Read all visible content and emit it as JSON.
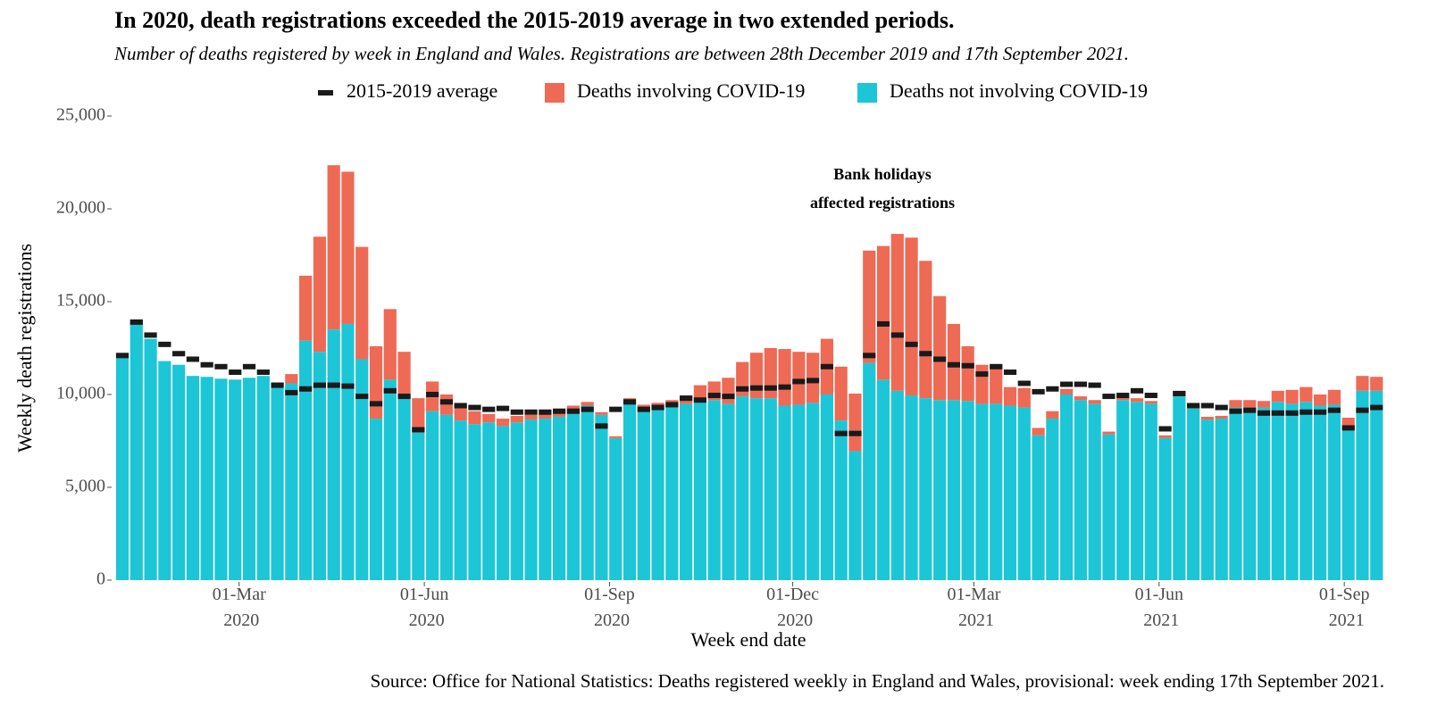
{
  "chart_data": {
    "type": "bar",
    "title": "In 2020, death registrations exceeded the 2015-2019 average in two extended periods.",
    "subtitle": "Number of deaths registered by week in England and Wales. Registrations are between 28th December 2019 and 17th September 2021.",
    "x_label": "Week end date",
    "y_label": "Weekly death registrations",
    "source": "Source: Office for National Statistics: Deaths registered weekly in England and Wales, provisional: week ending 17th September 2021.",
    "annotation": [
      "Bank holidays",
      "affected registrations"
    ],
    "stacked": true,
    "grid": false,
    "legend": "top",
    "x": [
      "2020-01-03",
      "2020-01-10",
      "2020-01-17",
      "2020-01-24",
      "2020-01-31",
      "2020-02-07",
      "2020-02-14",
      "2020-02-21",
      "2020-02-28",
      "2020-03-06",
      "2020-03-13",
      "2020-03-20",
      "2020-03-27",
      "2020-04-03",
      "2020-04-10",
      "2020-04-17",
      "2020-04-24",
      "2020-05-01",
      "2020-05-08",
      "2020-05-15",
      "2020-05-22",
      "2020-05-29",
      "2020-06-05",
      "2020-06-12",
      "2020-06-19",
      "2020-06-26",
      "2020-07-03",
      "2020-07-10",
      "2020-07-17",
      "2020-07-24",
      "2020-07-31",
      "2020-08-07",
      "2020-08-14",
      "2020-08-21",
      "2020-08-28",
      "2020-09-04",
      "2020-09-11",
      "2020-09-18",
      "2020-09-25",
      "2020-10-02",
      "2020-10-09",
      "2020-10-16",
      "2020-10-23",
      "2020-10-30",
      "2020-11-06",
      "2020-11-13",
      "2020-11-20",
      "2020-11-27",
      "2020-12-04",
      "2020-12-11",
      "2020-12-18",
      "2020-12-25",
      "2021-01-01",
      "2021-01-08",
      "2021-01-15",
      "2021-01-22",
      "2021-01-29",
      "2021-02-05",
      "2021-02-12",
      "2021-02-19",
      "2021-02-26",
      "2021-03-05",
      "2021-03-12",
      "2021-03-19",
      "2021-03-26",
      "2021-04-02",
      "2021-04-09",
      "2021-04-16",
      "2021-04-23",
      "2021-04-30",
      "2021-05-07",
      "2021-05-14",
      "2021-05-21",
      "2021-05-28",
      "2021-06-04",
      "2021-06-11",
      "2021-06-18",
      "2021-06-25",
      "2021-07-02",
      "2021-07-09",
      "2021-07-16",
      "2021-07-23",
      "2021-07-30",
      "2021-08-06",
      "2021-08-13",
      "2021-08-20",
      "2021-08-27",
      "2021-09-03",
      "2021-09-10",
      "2021-09-17"
    ],
    "series": [
      {
        "name": "2015-2019 average",
        "kind": "dash",
        "color": "#1a1a1a",
        "values": [
          12100,
          13900,
          13200,
          12700,
          12200,
          11900,
          11600,
          11500,
          11200,
          11500,
          11200,
          10500,
          10100,
          10300,
          10500,
          10500,
          10450,
          9900,
          9500,
          10200,
          9900,
          8100,
          10000,
          9600,
          9400,
          9300,
          9200,
          9250,
          9050,
          9050,
          9050,
          9100,
          9100,
          9200,
          8300,
          9200,
          9600,
          9200,
          9300,
          9450,
          9800,
          9700,
          9950,
          9900,
          10300,
          10350,
          10350,
          10400,
          10700,
          10750,
          11500,
          7900,
          7900,
          12100,
          13800,
          13200,
          12700,
          12200,
          11900,
          11600,
          11550,
          11100,
          11500,
          11200,
          10600,
          10150,
          10300,
          10550,
          10550,
          10500,
          9900,
          9950,
          10200,
          9950,
          8150,
          10050,
          9400,
          9400,
          9300,
          9100,
          9150,
          9000,
          9000,
          9000,
          9050,
          9050,
          9150,
          8200,
          9150,
          9300
        ]
      },
      {
        "name": "Deaths involving COVID-19",
        "kind": "bar",
        "color": "#ee6a55",
        "values": [
          0,
          0,
          0,
          0,
          0,
          0,
          0,
          0,
          0,
          0,
          0,
          0,
          500,
          3500,
          6200,
          8850,
          8200,
          6050,
          3900,
          3800,
          2500,
          1850,
          1600,
          1100,
          800,
          700,
          450,
          400,
          350,
          250,
          250,
          200,
          200,
          200,
          150,
          100,
          100,
          250,
          250,
          300,
          450,
          900,
          1000,
          1400,
          1850,
          2450,
          2700,
          3050,
          2850,
          2700,
          3000,
          2900,
          3100,
          6050,
          7200,
          8450,
          8500,
          7400,
          5600,
          4100,
          2950,
          2100,
          2050,
          1000,
          1050,
          400,
          400,
          300,
          200,
          200,
          150,
          200,
          200,
          150,
          150,
          300,
          150,
          150,
          150,
          400,
          400,
          350,
          600,
          750,
          800,
          600,
          800,
          700,
          800,
          750
        ]
      },
      {
        "name": "Deaths not involving COVID-19",
        "kind": "bar",
        "color": "#1cc6d6",
        "values": [
          12000,
          14000,
          13000,
          11800,
          11600,
          11000,
          10950,
          10850,
          10800,
          10900,
          11000,
          10650,
          10600,
          12900,
          12300,
          13500,
          13800,
          11900,
          8700,
          10800,
          9800,
          7950,
          9100,
          8900,
          8600,
          8400,
          8500,
          8300,
          8500,
          8650,
          8700,
          8800,
          9200,
          9400,
          8900,
          7650,
          9700,
          9200,
          9300,
          9400,
          9500,
          9600,
          9700,
          9500,
          9900,
          9800,
          9800,
          9400,
          9450,
          9550,
          10000,
          8600,
          6950,
          11700,
          10800,
          10200,
          9950,
          9800,
          9700,
          9700,
          9650,
          9500,
          9500,
          9400,
          9300,
          7800,
          8700,
          10000,
          9700,
          9500,
          7850,
          9700,
          9600,
          9500,
          7650,
          9900,
          9250,
          8650,
          8700,
          9300,
          9300,
          9300,
          9600,
          9500,
          9600,
          9400,
          9450,
          8050,
          10200,
          10200
        ]
      }
    ],
    "xlim": [
      "2019-12-30",
      "2021-09-20"
    ],
    "xticks": [
      {
        "value": "2020-03-01",
        "label": "01-Mar 2020"
      },
      {
        "value": "2020-06-01",
        "label": "01-Jun 2020"
      },
      {
        "value": "2020-09-01",
        "label": "01-Sep 2020"
      },
      {
        "value": "2020-12-01",
        "label": "01-Dec 2020"
      },
      {
        "value": "2021-03-01",
        "label": "01-Mar 2021"
      },
      {
        "value": "2021-06-01",
        "label": "01-Jun 2021"
      },
      {
        "value": "2021-09-01",
        "label": "01-Sep 2021"
      }
    ],
    "ylim": [
      0,
      25000
    ],
    "yticks": [
      0,
      {
        "value": 5000,
        "label": "5,000"
      },
      {
        "value": 10000,
        "label": "10,000"
      },
      {
        "value": 15000,
        "label": "15,000"
      },
      {
        "value": 20000,
        "label": "20,000"
      },
      {
        "value": 25000,
        "label": "25,000"
      }
    ]
  }
}
